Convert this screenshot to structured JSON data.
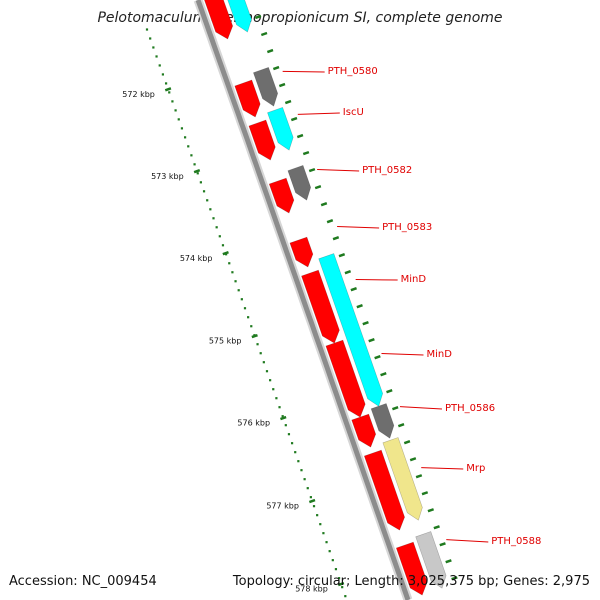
{
  "title": "Pelotomaculum thermopropionicum SI, complete genome",
  "footer": {
    "accession": "Accession: NC_009454",
    "summary": "Topology: circular; Length: 3,025,375 bp; Genes: 2,975"
  },
  "ruler": {
    "labels": [
      "572 kbp",
      "573 kbp",
      "574 kbp",
      "575 kbp",
      "576 kbp",
      "577 kbp",
      "578 kbp"
    ]
  },
  "gene_labels": [
    "PTH_0580",
    "IscU",
    "PTH_0582",
    "PTH_0583",
    "MinD",
    "MinD",
    "PTH_0586",
    "Mrp",
    "PTH_0588"
  ],
  "colors": {
    "backbone": "#8c8c8c",
    "cds": "#ff0000",
    "gene_grey": "#6e6e6e",
    "gene_cyan": "#00ffff",
    "gene_yellow": "#f0e68c",
    "gene_lightgrey": "#c8c8c8",
    "tick": "#1f7a1f",
    "label": "#e00000"
  }
}
